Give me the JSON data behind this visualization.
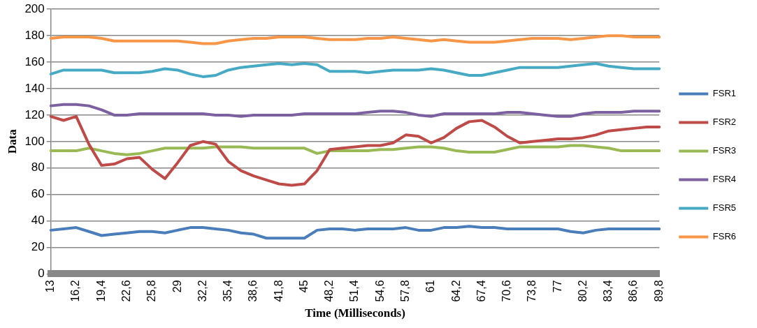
{
  "chart_data": {
    "type": "line",
    "xlabel": "Time (Milliseconds)",
    "ylabel": "Data",
    "categories": [
      "13",
      null,
      "16,2",
      null,
      "19,4",
      null,
      "22,6",
      null,
      "25,8",
      null,
      "29",
      null,
      "32,2",
      null,
      "35,4",
      null,
      "38,6",
      null,
      "41,8",
      null,
      "45",
      null,
      "48,2",
      null,
      "51,4",
      null,
      "54,6",
      null,
      "57,8",
      null,
      "61",
      null,
      "64,2",
      null,
      "67,4",
      null,
      "70,6",
      null,
      "73,8",
      null,
      "77",
      null,
      "80,2",
      null,
      "83,4",
      null,
      "86,6",
      null,
      "89,8"
    ],
    "series": [
      {
        "name": "FSR1",
        "color": "#4a7ebb",
        "values": [
          33,
          34,
          35,
          32,
          29,
          30,
          31,
          32,
          32,
          31,
          33,
          35,
          35,
          34,
          33,
          31,
          30,
          27,
          27,
          27,
          27,
          33,
          34,
          34,
          33,
          34,
          34,
          34,
          35,
          33,
          33,
          35,
          35,
          36,
          35,
          35,
          34,
          34,
          34,
          34,
          34,
          32,
          31,
          33,
          34,
          34,
          34,
          34,
          34
        ]
      },
      {
        "name": "FSR2",
        "color": "#be4b48",
        "values": [
          119,
          116,
          119,
          98,
          82,
          83,
          87,
          88,
          79,
          72,
          84,
          97,
          100,
          98,
          85,
          78,
          74,
          71,
          68,
          67,
          68,
          78,
          94,
          95,
          96,
          97,
          97,
          99,
          105,
          104,
          99,
          103,
          110,
          115,
          116,
          111,
          104,
          99,
          100,
          101,
          102,
          102,
          103,
          105,
          108,
          109,
          110,
          111,
          111
        ]
      },
      {
        "name": "FSR3",
        "color": "#98b954",
        "values": [
          93,
          93,
          93,
          95,
          93,
          91,
          90,
          91,
          93,
          95,
          95,
          95,
          95,
          96,
          96,
          96,
          95,
          95,
          95,
          95,
          95,
          91,
          93,
          93,
          93,
          93,
          94,
          94,
          95,
          96,
          96,
          95,
          93,
          92,
          92,
          92,
          94,
          96,
          96,
          96,
          96,
          97,
          97,
          96,
          95,
          93,
          93,
          93,
          93
        ]
      },
      {
        "name": "FSR4",
        "color": "#7d60a0",
        "values": [
          127,
          128,
          128,
          127,
          124,
          120,
          120,
          121,
          121,
          121,
          121,
          121,
          121,
          120,
          120,
          119,
          120,
          120,
          120,
          120,
          121,
          121,
          121,
          121,
          121,
          122,
          123,
          123,
          122,
          120,
          119,
          121,
          121,
          121,
          121,
          121,
          122,
          122,
          121,
          120,
          119,
          119,
          121,
          122,
          122,
          122,
          123,
          123,
          123
        ]
      },
      {
        "name": "FSR5",
        "color": "#46aac5",
        "values": [
          151,
          154,
          154,
          154,
          154,
          152,
          152,
          152,
          153,
          155,
          154,
          151,
          149,
          150,
          154,
          156,
          157,
          158,
          159,
          158,
          159,
          158,
          153,
          153,
          153,
          152,
          153,
          154,
          154,
          154,
          155,
          154,
          152,
          150,
          150,
          152,
          154,
          156,
          156,
          156,
          156,
          157,
          158,
          159,
          157,
          156,
          155,
          155,
          155
        ]
      },
      {
        "name": "FSR6",
        "color": "#f79646",
        "values": [
          178,
          179,
          179,
          179,
          178,
          176,
          176,
          176,
          176,
          176,
          176,
          175,
          174,
          174,
          176,
          177,
          178,
          178,
          179,
          179,
          179,
          178,
          177,
          177,
          177,
          178,
          178,
          179,
          178,
          177,
          176,
          177,
          176,
          175,
          175,
          175,
          176,
          177,
          178,
          178,
          178,
          177,
          178,
          179,
          180,
          180,
          179,
          179,
          179
        ]
      }
    ],
    "ylim": [
      0,
      200
    ],
    "yticks": [
      0,
      20,
      40,
      60,
      80,
      100,
      120,
      140,
      160,
      180,
      200
    ],
    "grid": "y",
    "legend": "right",
    "marker": "none",
    "line_style": "solid"
  }
}
